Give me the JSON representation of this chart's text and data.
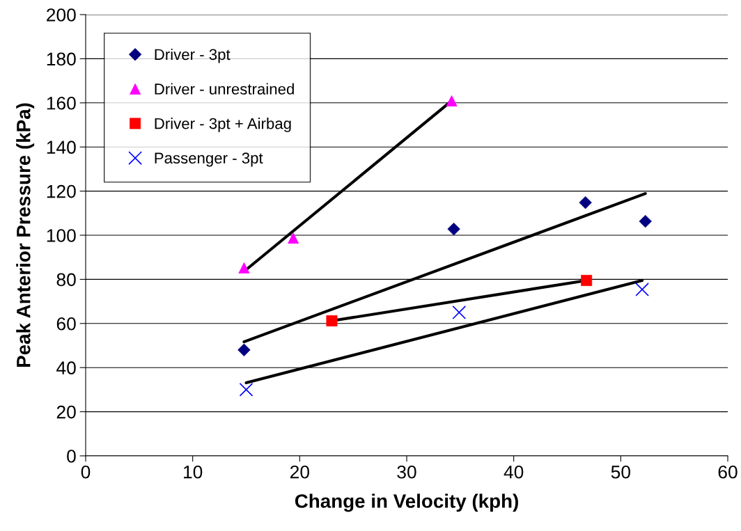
{
  "chart_data": {
    "type": "scatter",
    "xlabel": "Change in Velocity (kph)",
    "ylabel": "Peak Anterior Pressure (kPa)",
    "xlim": [
      0,
      60
    ],
    "xticks": [
      0,
      10,
      20,
      30,
      40,
      50,
      60
    ],
    "ylim": [
      0,
      200
    ],
    "yticks": [
      0,
      20,
      40,
      60,
      80,
      100,
      120,
      140,
      160,
      180,
      200
    ],
    "grid": "y",
    "legend": "top left",
    "series": [
      {
        "name": "Driver - 3pt",
        "color": "#000080",
        "marker": "diamond",
        "x": [
          14.8,
          34.4,
          46.7,
          52.3
        ],
        "values": [
          48,
          102.8,
          114.8,
          106.3
        ]
      },
      {
        "name": "Driver - unrestrained",
        "color": "#ff00ff",
        "marker": "triangle",
        "x": [
          14.8,
          19.4,
          34.2
        ],
        "values": [
          85.2,
          98.7,
          160.9
        ]
      },
      {
        "name": "Driver - 3pt + Airbag",
        "color": "#ff0000",
        "marker": "square",
        "x": [
          23.0,
          46.8
        ],
        "values": [
          61.2,
          79.5
        ]
      },
      {
        "name": "Passenger - 3pt",
        "color": "#0000ff",
        "marker": "cross",
        "x": [
          15.0,
          34.9,
          52.0
        ],
        "values": [
          30.0,
          65.0,
          75.4
        ]
      },
      {
        "type": "line",
        "color": "#000000",
        "marker": "none",
        "x": [
          14.8,
          52.3
        ],
        "values": [
          51.7,
          118.9
        ]
      },
      {
        "type": "line",
        "color": "#000000",
        "marker": "none",
        "x": [
          14.8,
          34.2
        ],
        "values": [
          83.6,
          160.9
        ]
      },
      {
        "type": "line",
        "color": "#000000",
        "marker": "none",
        "x": [
          23.0,
          46.8
        ],
        "values": [
          61.2,
          79.5
        ]
      },
      {
        "type": "line",
        "color": "#000000",
        "marker": "none",
        "x": [
          15.0,
          52.0
        ],
        "values": [
          33.1,
          79.5
        ]
      }
    ]
  }
}
